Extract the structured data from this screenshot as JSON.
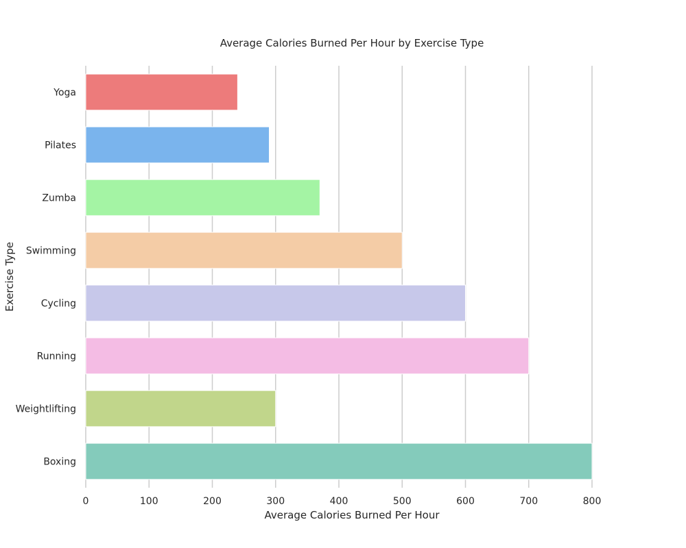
{
  "chart_data": {
    "type": "bar",
    "orientation": "horizontal",
    "title": "Average Calories Burned Per Hour by Exercise Type",
    "xlabel": "Average Calories Burned Per Hour",
    "ylabel": "Exercise Type",
    "categories": [
      "Yoga",
      "Pilates",
      "Zumba",
      "Swimming",
      "Cycling",
      "Running",
      "Weightlifting",
      "Boxing"
    ],
    "values": [
      240,
      290,
      370,
      500,
      600,
      700,
      300,
      800
    ],
    "colors": [
      "#ed7b7b",
      "#7ab4ed",
      "#a4f4a4",
      "#f4cca6",
      "#c7c8ea",
      "#f4bce4",
      "#c1d68b",
      "#84cbbb"
    ],
    "xlim": [
      0,
      800
    ],
    "xticks": [
      0,
      100,
      200,
      300,
      400,
      500,
      600,
      700,
      800
    ],
    "grid": "vertical",
    "legend": "none"
  }
}
